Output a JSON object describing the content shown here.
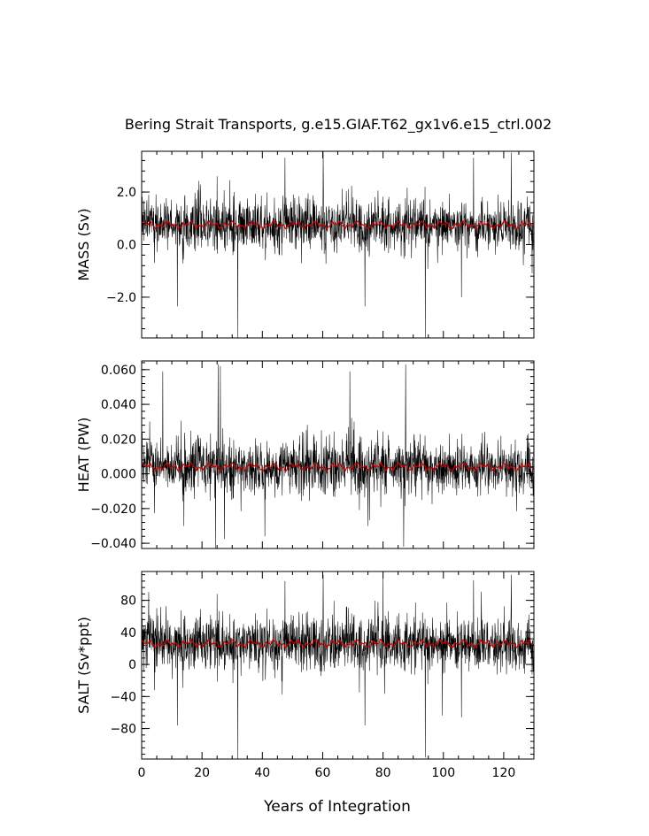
{
  "chart_data": {
    "type": "line",
    "title": "Bering Strait Transports, g.e15.GIAF.T62_gx1v6.e15_ctrl.002",
    "xlabel": "Years of Integration",
    "xlim": [
      0,
      130
    ],
    "x_ticks": [
      0,
      20,
      40,
      60,
      80,
      100,
      120
    ],
    "x_tick_labels": [
      "0",
      "20",
      "40",
      "60",
      "80",
      "100",
      "120"
    ],
    "series_colors": {
      "monthly": "#000000",
      "annual_mean": "#cc0000"
    },
    "panels": [
      {
        "id": "mass",
        "ylabel": "MASS (Sv)",
        "ylim": [
          -3.55,
          3.55
        ],
        "y_ticks": [
          -2.0,
          0.0,
          2.0
        ],
        "y_tick_labels": [
          "−2.0",
          "0.0",
          "2.0"
        ],
        "mean": 0.75,
        "spread": 0.55,
        "annual_amp": 0.12,
        "spikes": [
          [
            47.5,
            3.3
          ],
          [
            60.2,
            3.55
          ],
          [
            110.0,
            3.3
          ],
          [
            122.5,
            3.5
          ],
          [
            25.0,
            2.6
          ],
          [
            31.8,
            -3.55
          ],
          [
            94.0,
            -3.55
          ],
          [
            11.8,
            -2.35
          ],
          [
            74.0,
            -2.35
          ],
          [
            106.0,
            -2.0
          ]
        ]
      },
      {
        "id": "heat",
        "ylabel": "HEAT (PW)",
        "ylim": [
          -0.043,
          0.065
        ],
        "y_ticks": [
          -0.04,
          -0.02,
          0.0,
          0.02,
          0.04,
          0.06
        ],
        "y_tick_labels": [
          "−0.040",
          "−0.020",
          "0.000",
          "0.020",
          "0.040",
          "0.060"
        ],
        "mean": 0.004,
        "spread": 0.009,
        "annual_amp": 0.002,
        "spikes": [
          [
            7.0,
            0.059
          ],
          [
            25.3,
            0.063
          ],
          [
            26.1,
            0.062
          ],
          [
            69.0,
            0.059
          ],
          [
            87.5,
            0.063
          ],
          [
            24.5,
            -0.043
          ],
          [
            40.8,
            -0.036
          ],
          [
            86.8,
            -0.042
          ],
          [
            14.0,
            -0.03
          ],
          [
            75.0,
            -0.03
          ]
        ]
      },
      {
        "id": "salt",
        "ylabel": "SALT (Sv*ppt)",
        "ylim": [
          -118,
          116
        ],
        "y_ticks": [
          -80,
          -40,
          0,
          40,
          80
        ],
        "y_tick_labels": [
          "−80",
          "−40",
          "0",
          "40",
          "80"
        ],
        "mean": 26,
        "spread": 19,
        "annual_amp": 4,
        "spikes": [
          [
            47.5,
            104
          ],
          [
            60.2,
            112
          ],
          [
            110.0,
            105
          ],
          [
            122.5,
            112
          ],
          [
            25.0,
            88
          ],
          [
            31.8,
            -118
          ],
          [
            94.0,
            -116
          ],
          [
            11.8,
            -76
          ],
          [
            74.0,
            -76
          ],
          [
            106.0,
            -66
          ]
        ]
      }
    ]
  }
}
